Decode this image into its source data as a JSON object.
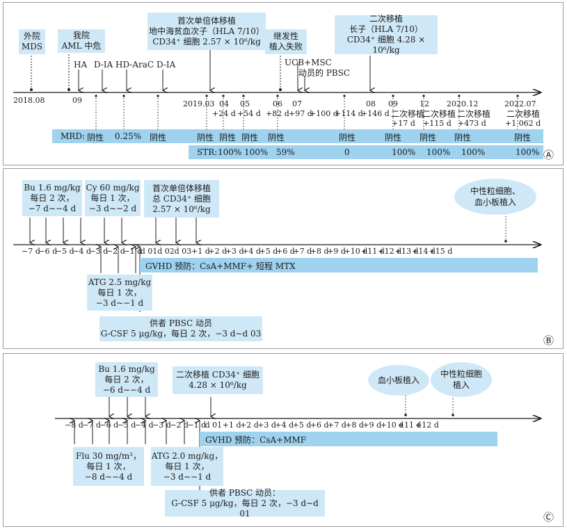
{
  "panelA": {
    "box_outside": [
      "外院",
      "MDS"
    ],
    "box_our": [
      "我院",
      "AML 中危"
    ],
    "box_first_tx": [
      "首次单倍体移植",
      "地中海贫血次子（HLA 7/10）",
      "CD34⁺ 细胞 2.57 × 10⁶/kg"
    ],
    "box_graft_fail": [
      "继发性",
      "植入失败"
    ],
    "box_second_tx": [
      "二次移植",
      "长子（HLA 7/10）",
      "CD34⁺ 细胞 4.28 × 10⁶/kg"
    ],
    "chemo": [
      "HA",
      "D-IA",
      "HD-AraC",
      "D-IA"
    ],
    "ucb_msc": "UCB+MSC",
    "mobilized_pbsc": "动员的 PBSC",
    "dates": [
      "2018.08",
      "09",
      "2019.03",
      "04",
      "05",
      "06",
      "07",
      "08",
      "09",
      "12",
      "2020.12",
      "2022.07"
    ],
    "day_labels": [
      "+24 d",
      "+54 d",
      "+82 d",
      "+97 d",
      "+100 d",
      "+114 d",
      "+146 d"
    ],
    "second_labels": [
      {
        "top": "二次移植",
        "day": "+17 d"
      },
      {
        "top": "二次移植",
        "day": "+115 d"
      },
      {
        "top": "二次移植",
        "day": "+473 d"
      },
      {
        "top": "二次移植",
        "day": "+1 062 d"
      }
    ],
    "mrd_label": "MRD:",
    "mrd_values": [
      "阴性",
      "0.25%",
      "阴性",
      "阴性",
      "阴性",
      "阴性",
      "阴性",
      "阴性",
      "阴性",
      "阴性",
      "阴性",
      "阴性"
    ],
    "str_label": "STR:",
    "str_values": [
      "100%",
      "100%",
      "59%",
      "0",
      "100%",
      "100%",
      "100%",
      "100%"
    ],
    "panel_mark": "Ⓐ"
  },
  "panelB": {
    "box_bu": [
      "Bu 1.6 mg/kg",
      "每日 2 次，",
      "−7 d∼−4 d"
    ],
    "box_cy": [
      "Cy 60 mg/kg",
      "每日 1 次，",
      "−3 d∼−2 d"
    ],
    "box_tx": [
      "首次单倍体移植",
      "总 CD34⁺ 细胞",
      "2.57 × 10⁶/kg"
    ],
    "ellipse": [
      "中性粒细胞、",
      "血小板植入"
    ],
    "ticks": [
      "−7 d",
      "−6 d",
      "−5 d",
      "−4 d",
      "−3 d",
      "−2 d",
      "−1 d",
      "d 01",
      "d 02",
      "d 03",
      "+1 d",
      "+2 d",
      "+3 d",
      "+4 d",
      "+5 d",
      "+6 d",
      "+7 d",
      "+8 d",
      "+9 d",
      "+10 d",
      "+11 d",
      "+12 d",
      "+13 d",
      "+14 d",
      "+15 d"
    ],
    "gvhd": "GVHD 预防：CsA+MMF+ 短程 MTX",
    "box_atg": [
      "ATG 2.5 mg/kg",
      "每日 1 次，",
      "−3 d∼−1 d"
    ],
    "box_gcsf": [
      "供者 PBSC 动员",
      "G-CSF 5 μg/kg，每日 2 次，−3 d∼d 03"
    ],
    "panel_mark": "Ⓑ"
  },
  "panelC": {
    "box_bu": [
      "Bu 1.6 mg/kg",
      "每日 2 次，",
      "−6 d∼−4 d"
    ],
    "box_tx": [
      "二次移植 CD34⁺ 细胞",
      "4.28 × 10⁶/kg"
    ],
    "ellipse_plt": [
      "血小板植入"
    ],
    "ellipse_neu": [
      "中性粒细胞",
      "植入"
    ],
    "ticks": [
      "−8 d",
      "−7 d",
      "−6 d",
      "−5 d",
      "−4 d",
      "−3 d",
      "−2 d",
      "−1 d",
      "d 01",
      "+1 d",
      "+2 d",
      "+3 d",
      "+4 d",
      "+5 d",
      "+6 d",
      "+7 d",
      "+8 d",
      "+9 d",
      "+10 d",
      "+11 d",
      "+12 d"
    ],
    "gvhd": "GVHD 预防：CsA+MMF",
    "box_flu": [
      "Flu 30 mg/m²，",
      "每日 1 次，",
      "−8 d∼−4 d"
    ],
    "box_atg": [
      "ATG 2.0 mg/kg，",
      "每日 1 次，",
      "−3 d∼−1 d"
    ],
    "box_gcsf": [
      "供者 PBSC 动员：",
      "G-CSF 5 μg/kg，每日 2 次，−3 d∼d 01"
    ],
    "panel_mark": "Ⓒ"
  },
  "colors": {
    "box": "#cfe8f7",
    "band": "#9ed2ef",
    "line": "#1a1a1a"
  }
}
